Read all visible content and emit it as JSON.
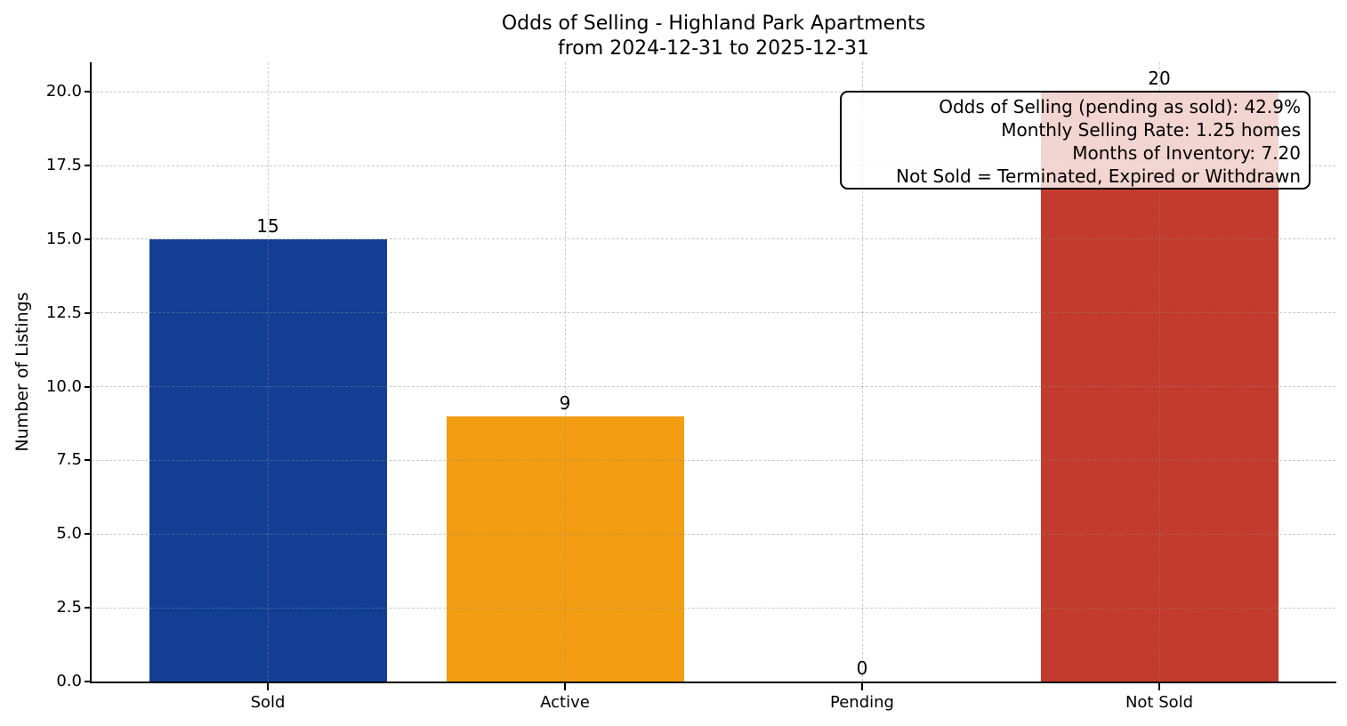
{
  "chart_data": {
    "type": "bar",
    "title": "Odds of Selling - Highland Park Apartments",
    "subtitle": "from 2024-12-31 to 2025-12-31",
    "categories": [
      "Sold",
      "Active",
      "Pending",
      "Not Sold"
    ],
    "values": [
      15,
      9,
      0,
      20
    ],
    "value_labels": [
      "15",
      "9",
      "0",
      "20"
    ],
    "bar_colors": [
      "#123e94",
      "#f29d12",
      null,
      "#c23b2c"
    ],
    "xlabel": "",
    "ylabel": "Number of Listings",
    "ylim": [
      0,
      21
    ],
    "yticks": [
      0,
      2.5,
      5,
      7.5,
      10,
      12.5,
      15,
      17.5,
      20
    ],
    "ytick_labels": [
      "0.0",
      "2.5",
      "5.0",
      "7.5",
      "10.0",
      "12.5",
      "15.0",
      "17.5",
      "20.0"
    ],
    "grid": {
      "style": "dashed",
      "axes": "both",
      "above_bars": true
    },
    "legend": "none",
    "annotation": {
      "align": "right",
      "lines": [
        "Odds of Selling (pending as sold): 42.9%",
        "Monthly Selling Rate: 1.25 homes",
        "Months of Inventory: 7.20",
        "Not Sold = Terminated, Expired or Withdrawn"
      ]
    }
  }
}
